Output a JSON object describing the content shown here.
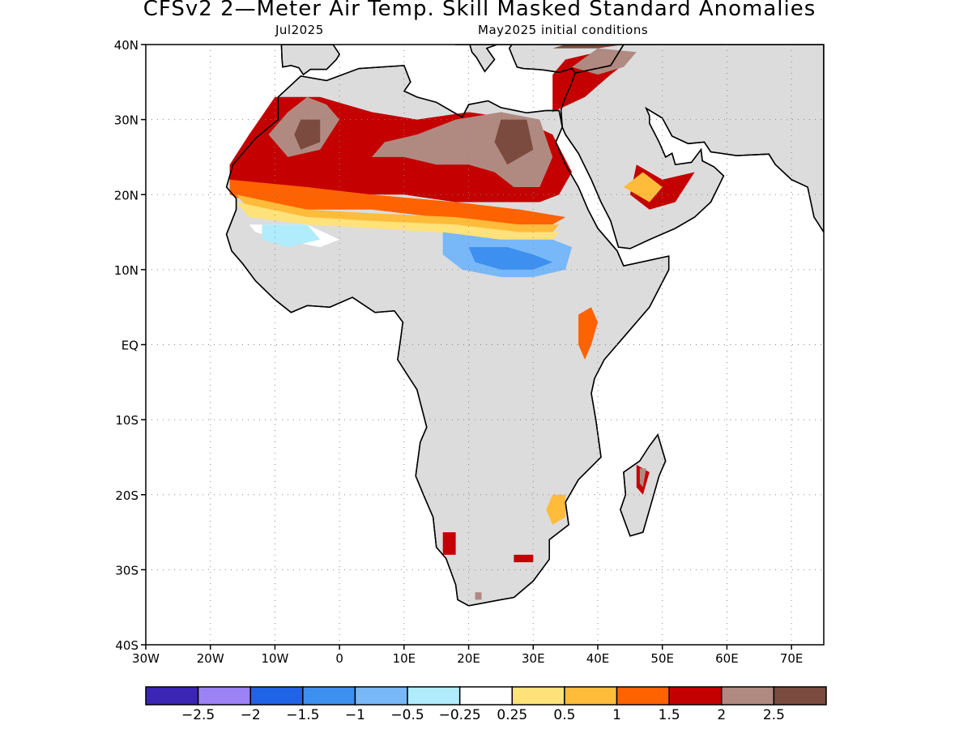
{
  "title": "CFSv2 2—Meter Air Temp. Skill Masked Standard Anomalies",
  "subtitle_left": "Jul2025",
  "subtitle_right": "May2025 initial conditions",
  "map": {
    "lon_range": [
      -30,
      75
    ],
    "lat_range": [
      -40,
      40
    ],
    "lon_ticks": [
      {
        "v": -30,
        "label": "30W"
      },
      {
        "v": -20,
        "label": "20W"
      },
      {
        "v": -10,
        "label": "10W"
      },
      {
        "v": 0,
        "label": "0"
      },
      {
        "v": 10,
        "label": "10E"
      },
      {
        "v": 20,
        "label": "20E"
      },
      {
        "v": 30,
        "label": "30E"
      },
      {
        "v": 40,
        "label": "40E"
      },
      {
        "v": 50,
        "label": "50E"
      },
      {
        "v": 60,
        "label": "60E"
      },
      {
        "v": 70,
        "label": "70E"
      }
    ],
    "lat_ticks": [
      {
        "v": 40,
        "label": "40N"
      },
      {
        "v": 30,
        "label": "30N"
      },
      {
        "v": 20,
        "label": "20N"
      },
      {
        "v": 10,
        "label": "10N"
      },
      {
        "v": 0,
        "label": "EQ"
      },
      {
        "v": -10,
        "label": "10S"
      },
      {
        "v": -20,
        "label": "20S"
      },
      {
        "v": -30,
        "label": "30S"
      },
      {
        "v": -40,
        "label": "40S"
      }
    ],
    "land_masked_color": "#dcdcdc",
    "ocean_color": "#ffffff"
  },
  "colorbar": {
    "colors": [
      "#3a25b5",
      "#9b82f5",
      "#1f63e6",
      "#3d8ff0",
      "#78b8f9",
      "#b0ecfb",
      "#ffffff",
      "#ffe27a",
      "#ffbb3a",
      "#ff6200",
      "#c40000",
      "#b08a80",
      "#7a4b3e"
    ],
    "labels": [
      "−2.5",
      "−2",
      "−1.5",
      "−1",
      "−0.5",
      "−0.25",
      "0.25",
      "0.5",
      "1",
      "1.5",
      "2",
      "2.5"
    ]
  },
  "anomaly_regions": [
    {
      "level": 1.5,
      "coords": [
        [
          -17,
          22
        ],
        [
          -12,
          21
        ],
        [
          -5,
          21
        ],
        [
          3,
          20
        ],
        [
          10,
          20
        ],
        [
          18,
          19
        ],
        [
          25,
          19
        ],
        [
          31,
          19
        ],
        [
          34,
          20
        ],
        [
          36,
          23
        ],
        [
          33,
          28
        ],
        [
          28,
          30
        ],
        [
          20,
          31
        ],
        [
          12,
          30
        ],
        [
          5,
          31
        ],
        [
          -3,
          33
        ],
        [
          -10,
          33
        ],
        [
          -14,
          28
        ],
        [
          -17,
          24
        ]
      ]
    },
    {
      "level": 2,
      "coords": [
        [
          -8,
          31
        ],
        [
          -5,
          33
        ],
        [
          -2,
          32
        ],
        [
          0,
          30
        ],
        [
          -3,
          26
        ],
        [
          -8,
          25
        ],
        [
          -11,
          28
        ]
      ]
    },
    {
      "level": 2,
      "coords": [
        [
          5,
          25
        ],
        [
          10,
          25
        ],
        [
          15,
          24
        ],
        [
          20,
          24
        ],
        [
          24,
          23
        ],
        [
          27,
          21
        ],
        [
          31,
          21
        ],
        [
          33,
          25
        ],
        [
          31,
          30
        ],
        [
          25,
          31
        ],
        [
          18,
          30
        ],
        [
          12,
          28
        ],
        [
          7,
          27
        ]
      ]
    },
    {
      "level": 2.5,
      "coords": [
        [
          -6,
          30
        ],
        [
          -3,
          30
        ],
        [
          -3,
          27
        ],
        [
          -6,
          26
        ],
        [
          -7,
          28
        ]
      ]
    },
    {
      "level": 2.5,
      "coords": [
        [
          25,
          30
        ],
        [
          29,
          30
        ],
        [
          30,
          26
        ],
        [
          26,
          24
        ],
        [
          24,
          27
        ]
      ]
    },
    {
      "level": 1,
      "coords": [
        [
          -17,
          22
        ],
        [
          -5,
          21
        ],
        [
          5,
          20
        ],
        [
          18,
          19
        ],
        [
          28,
          18
        ],
        [
          35,
          17
        ],
        [
          33,
          16
        ],
        [
          25,
          16
        ],
        [
          15,
          17
        ],
        [
          5,
          18
        ],
        [
          -5,
          18
        ],
        [
          -14,
          19
        ],
        [
          -17,
          20
        ]
      ]
    },
    {
      "level": 0.5,
      "coords": [
        [
          -16,
          20
        ],
        [
          -5,
          18
        ],
        [
          5,
          17.5
        ],
        [
          18,
          17
        ],
        [
          28,
          16
        ],
        [
          34,
          16
        ],
        [
          33,
          15
        ],
        [
          25,
          15
        ],
        [
          15,
          16
        ],
        [
          5,
          16.5
        ],
        [
          -5,
          17
        ],
        [
          -14,
          18
        ]
      ]
    },
    {
      "level": 0.25,
      "coords": [
        [
          -16,
          19
        ],
        [
          -5,
          17
        ],
        [
          5,
          16.5
        ],
        [
          18,
          16
        ],
        [
          28,
          15
        ],
        [
          34,
          15
        ],
        [
          33,
          14
        ],
        [
          25,
          14
        ],
        [
          15,
          15
        ],
        [
          5,
          15.5
        ],
        [
          -5,
          16
        ],
        [
          -14,
          17
        ]
      ]
    },
    {
      "level": -0.25,
      "coords": [
        [
          -14,
          16
        ],
        [
          -5,
          16
        ],
        [
          0,
          14
        ],
        [
          -3,
          13
        ],
        [
          -9,
          14
        ],
        [
          -13,
          15
        ]
      ]
    },
    {
      "level": -0.5,
      "coords": [
        [
          -12,
          16
        ],
        [
          -5,
          16
        ],
        [
          -3,
          14
        ],
        [
          -8,
          13
        ],
        [
          -12,
          14
        ]
      ]
    },
    {
      "level": -1,
      "coords": [
        [
          16,
          15
        ],
        [
          25,
          14
        ],
        [
          33,
          14
        ],
        [
          36,
          13
        ],
        [
          35,
          10
        ],
        [
          30,
          9
        ],
        [
          25,
          9
        ],
        [
          19,
          10
        ],
        [
          16,
          12
        ]
      ]
    },
    {
      "level": -1.5,
      "coords": [
        [
          20,
          13
        ],
        [
          26,
          13
        ],
        [
          30,
          12
        ],
        [
          33,
          11
        ],
        [
          30,
          10
        ],
        [
          25,
          10
        ],
        [
          21,
          11
        ]
      ]
    },
    {
      "level": 1.5,
      "coords": [
        [
          33,
          31
        ],
        [
          38,
          33
        ],
        [
          42,
          36
        ],
        [
          45,
          38
        ],
        [
          40,
          39
        ],
        [
          35,
          38
        ],
        [
          33,
          36
        ]
      ]
    },
    {
      "level": 2,
      "coords": [
        [
          36,
          37
        ],
        [
          40,
          36
        ],
        [
          44,
          37
        ],
        [
          46,
          39
        ],
        [
          40,
          39.5
        ]
      ]
    },
    {
      "level": 2.5,
      "coords": [
        [
          33,
          39.5
        ],
        [
          40,
          39.5
        ],
        [
          44,
          40
        ],
        [
          35,
          40
        ]
      ]
    },
    {
      "level": 1.5,
      "coords": [
        [
          46,
          24
        ],
        [
          50,
          22
        ],
        [
          55,
          23
        ],
        [
          52,
          19
        ],
        [
          48,
          18
        ],
        [
          45,
          20
        ]
      ]
    },
    {
      "level": 0.5,
      "coords": [
        [
          44,
          21
        ],
        [
          48,
          19
        ],
        [
          50,
          21
        ],
        [
          47,
          23
        ]
      ]
    },
    {
      "level": 1,
      "coords": [
        [
          37,
          4
        ],
        [
          39,
          5
        ],
        [
          40,
          3
        ],
        [
          39,
          0
        ],
        [
          38,
          -2
        ],
        [
          37,
          0
        ]
      ]
    },
    {
      "level": 0.5,
      "coords": [
        [
          33,
          -20
        ],
        [
          35,
          -20
        ],
        [
          35,
          -23
        ],
        [
          33,
          -24
        ],
        [
          32,
          -22
        ]
      ]
    },
    {
      "level": 1.5,
      "coords": [
        [
          46,
          -16
        ],
        [
          48,
          -17
        ],
        [
          47,
          -20
        ],
        [
          46,
          -19
        ]
      ]
    },
    {
      "level": 2,
      "coords": [
        [
          46.5,
          -16.5
        ],
        [
          47.5,
          -16.5
        ],
        [
          47,
          -19
        ],
        [
          46.5,
          -18.5
        ]
      ]
    },
    {
      "level": 1.5,
      "coords": [
        [
          16,
          -25
        ],
        [
          18,
          -25
        ],
        [
          18,
          -28
        ],
        [
          16,
          -28
        ]
      ]
    },
    {
      "level": 1.5,
      "coords": [
        [
          27,
          -28
        ],
        [
          30,
          -28
        ],
        [
          30,
          -29
        ],
        [
          27,
          -29
        ]
      ]
    },
    {
      "level": 2,
      "coords": [
        [
          21,
          -33
        ],
        [
          22,
          -33
        ],
        [
          22,
          -34
        ],
        [
          21,
          -34
        ]
      ]
    }
  ]
}
